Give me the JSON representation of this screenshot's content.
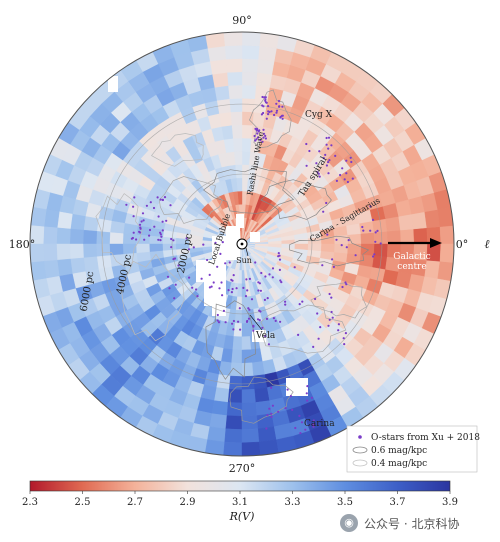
{
  "chart_data": {
    "type": "heatmap",
    "projection": "polar map of Galactic plane centred on the Sun",
    "angle_labels": {
      "top": "90°",
      "left": "180°",
      "right": "0°",
      "bottom": "270°",
      "axis_symbol": "ℓ"
    },
    "distance_labels": [
      "2000 pc",
      "4000 pc",
      "6000 pc"
    ],
    "region_labels": [
      "Cyg X",
      "Rashi line Wave",
      "Tau spiral",
      "Local Bubble",
      "Sun",
      "Carina - Sagittarius",
      "Galactic centre",
      "Vela",
      "Carina"
    ],
    "legend": {
      "placement": "bottom-right",
      "entries": [
        {
          "label": "O-stars from Xu + 2018",
          "marker": "dot",
          "color": "#7a3cc8"
        },
        {
          "label": "0.6 mag/kpc",
          "marker": "contour",
          "color": "#888888"
        },
        {
          "label": "0.4 mag/kpc",
          "marker": "contour",
          "color": "#bdbdbd"
        }
      ]
    },
    "colorbar": {
      "label": "R(V)",
      "range": [
        2.3,
        3.9
      ],
      "ticks": [
        2.3,
        2.5,
        2.7,
        2.9,
        3.1,
        3.3,
        3.5,
        3.7,
        3.9
      ],
      "tick_labels": [
        "2.3",
        "2.5",
        "2.7",
        "2.9",
        "3.1",
        "3.3",
        "3.5",
        "3.7",
        "3.9"
      ],
      "colors": [
        "#b2182b",
        "#e06a52",
        "#f4b29a",
        "#f2e2dc",
        "#dce6f2",
        "#9ec1ec",
        "#5f8ee0",
        "#3d5fc7",
        "#2b35a0"
      ]
    }
  },
  "watermark": "公众号 · 北京科协"
}
